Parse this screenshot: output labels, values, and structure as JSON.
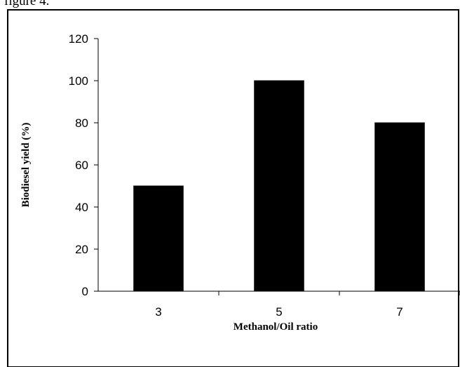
{
  "caption": "figure 4.",
  "chart_data": {
    "type": "bar",
    "categories": [
      "3",
      "5",
      "7"
    ],
    "values": [
      50,
      100,
      80
    ],
    "xlabel": "Methanol/Oil ratio",
    "ylabel": "Biodiesel yield (%)",
    "ylim": [
      0,
      120
    ],
    "yticks": [
      "0",
      "20",
      "40",
      "60",
      "80",
      "100",
      "120"
    ],
    "bar_color": "#000000",
    "grid": false
  }
}
